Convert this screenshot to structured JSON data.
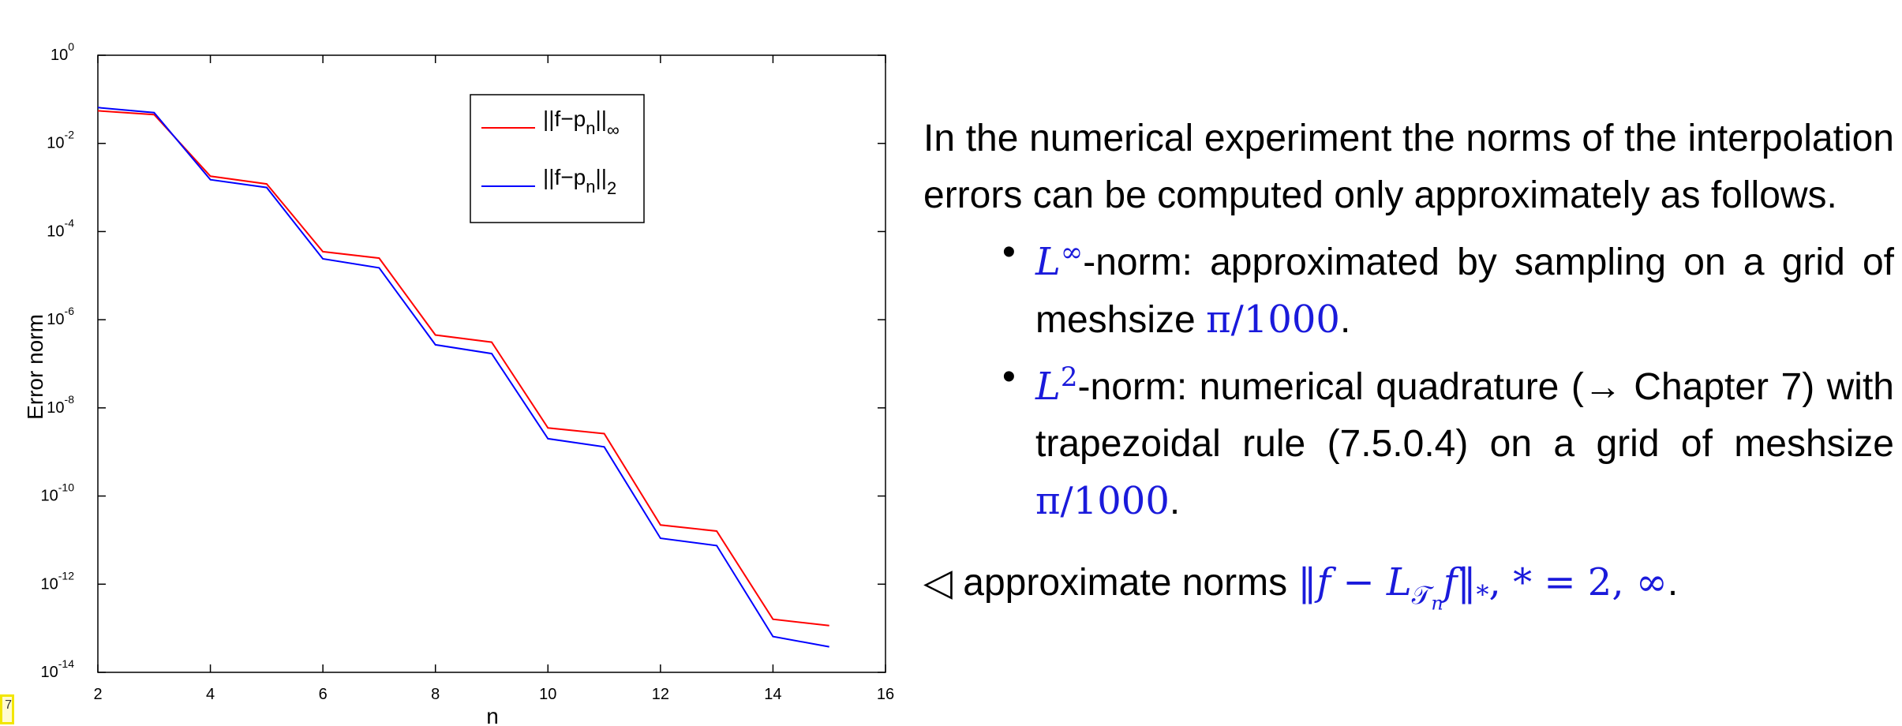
{
  "chart_data": {
    "type": "line",
    "xlabel": "n",
    "ylabel": "Error norm",
    "xlim": [
      2,
      16
    ],
    "ylim_exponent": [
      -14,
      0
    ],
    "yscale": "log",
    "x_ticks": [
      "2",
      "4",
      "6",
      "8",
      "10",
      "12",
      "14",
      "16"
    ],
    "y_ticks": [
      {
        "base": "10",
        "exp": "0"
      },
      {
        "base": "10",
        "exp": "-2"
      },
      {
        "base": "10",
        "exp": "-4"
      },
      {
        "base": "10",
        "exp": "-6"
      },
      {
        "base": "10",
        "exp": "-8"
      },
      {
        "base": "10",
        "exp": "-10"
      },
      {
        "base": "10",
        "exp": "-12"
      },
      {
        "base": "10",
        "exp": "-14"
      }
    ],
    "legend_position": "top-right",
    "grid": false,
    "x": [
      2,
      3,
      4,
      5,
      6,
      7,
      8,
      9,
      10,
      11,
      12,
      13,
      14,
      15
    ],
    "series": [
      {
        "name_main": "||f−p",
        "name_sub": "n",
        "name_close": "||",
        "name_norm": "∞",
        "color": "#ff0000",
        "values": [
          0.055,
          0.045,
          0.0018,
          0.0012,
          3.5e-05,
          2.5e-05,
          4.5e-07,
          3.1e-07,
          3.5e-09,
          2.6e-09,
          2.2e-11,
          1.6e-11,
          1.6e-13,
          1.15e-13
        ]
      },
      {
        "name_main": "||f−p",
        "name_sub": "n",
        "name_close": "||",
        "name_norm": "2",
        "color": "#0000ff",
        "values": [
          0.065,
          0.05,
          0.0015,
          0.001,
          2.4e-05,
          1.5e-05,
          2.7e-07,
          1.7e-07,
          2e-09,
          1.3e-09,
          1.1e-11,
          7.5e-12,
          6.5e-14,
          3.8e-14
        ]
      }
    ]
  },
  "text": {
    "intro": "In the numerical experiment the norms of the interpolation errors can be computed only approximately as follows.",
    "bullet1": {
      "math_symbol": "L",
      "math_sup": "∞",
      "text": "-norm: approximated by sampling on a grid of meshsize ",
      "math_value": "π/1000",
      "end": "."
    },
    "bullet2": {
      "math_symbol": "L",
      "math_sup": "2",
      "text": "-norm: numerical quadrature (→ Chapter 7) with trapezoidal rule (7.5.0.4) on a grid of meshsize ",
      "math_value": "π/1000",
      "end": "."
    },
    "caption": {
      "prefix": "◁ approximate norms ",
      "formula_open": "‖f − L",
      "formula_sub": "𝒯",
      "formula_subsub": "n",
      "formula_close": "f‖",
      "formula_star": "*",
      "formula_tail": ", * = 2, ∞",
      "end": "."
    },
    "ref_marker": "7"
  }
}
